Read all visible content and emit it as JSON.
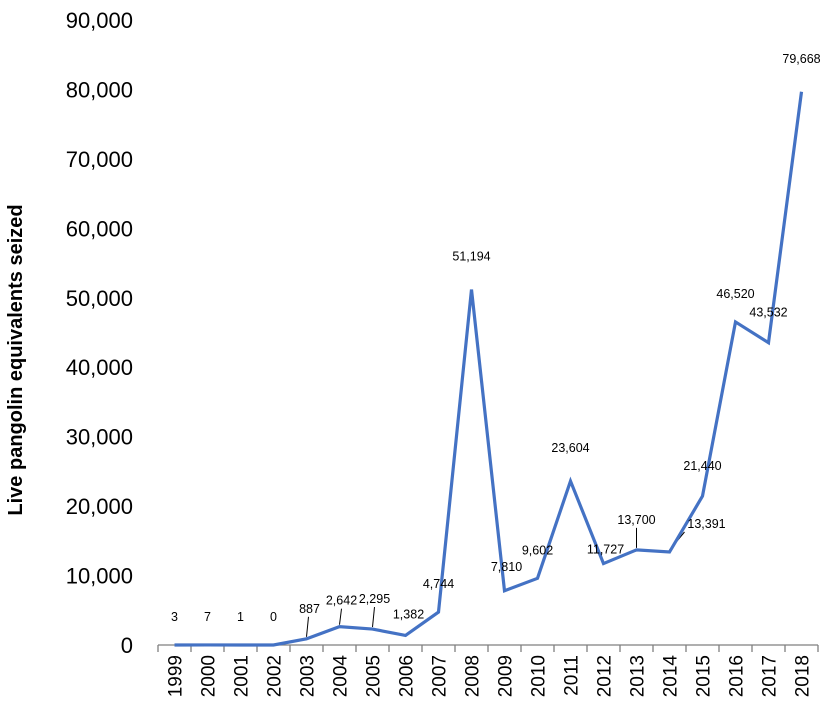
{
  "chart_data": {
    "type": "line",
    "title": "",
    "xlabel": "",
    "ylabel": "Live pangolin equivalents seized",
    "ylim": [
      0,
      90000
    ],
    "yticks": [
      0,
      10000,
      20000,
      30000,
      40000,
      50000,
      60000,
      70000,
      80000,
      90000
    ],
    "ytick_labels": [
      "0",
      "10,000",
      "20,000",
      "30,000",
      "40,000",
      "50,000",
      "60,000",
      "70,000",
      "80,000",
      "90,000"
    ],
    "categories": [
      "1999",
      "2000",
      "2001",
      "2002",
      "2003",
      "2004",
      "2005",
      "2006",
      "2007",
      "2008",
      "2009",
      "2010",
      "2011",
      "2012",
      "2013",
      "2014",
      "2015",
      "2016",
      "2017",
      "2018"
    ],
    "series": [
      {
        "values": [
          3,
          7,
          1,
          0,
          887,
          2642,
          2295,
          1382,
          4744,
          51194,
          7810,
          9602,
          23604,
          11727,
          13700,
          13391,
          21440,
          46520,
          43532,
          79668
        ],
        "data_labels": [
          "3",
          "7",
          "1",
          "0",
          "887",
          "2,642",
          "2,295",
          "1,382",
          "4,744",
          "51,194",
          "7,810",
          "9,602",
          "23,604",
          "11,727",
          "13,700",
          "13,391",
          "21,440",
          "46,520",
          "43,532",
          "79,668"
        ],
        "color": "#4472C4"
      }
    ],
    "grid": false,
    "legend": "none"
  }
}
